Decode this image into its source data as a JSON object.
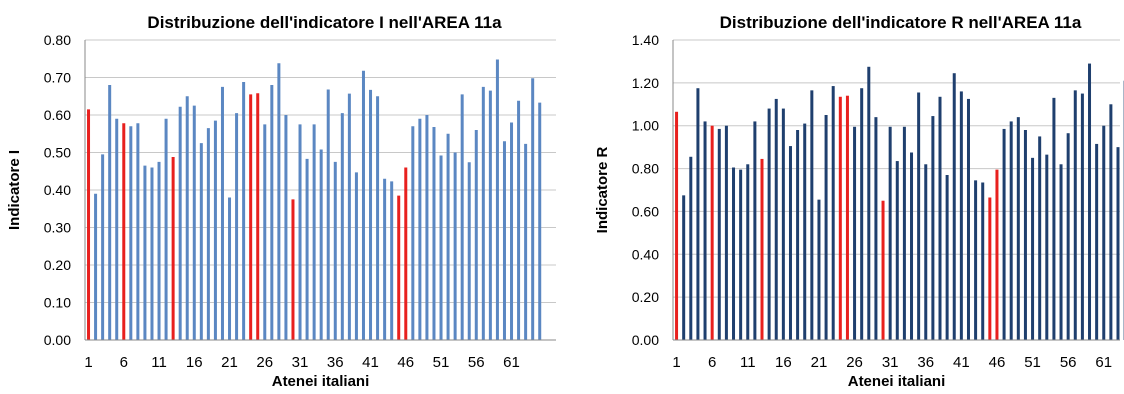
{
  "chart_data": [
    {
      "type": "bar",
      "title": "Distribuzione dell'indicatore I nell'AREA 11a",
      "xlabel": "Atenei italiani",
      "ylabel": "Indicatore I",
      "ylim": [
        0,
        0.8
      ],
      "yticks": [
        "0.00",
        "0.10",
        "0.20",
        "0.30",
        "0.40",
        "0.50",
        "0.60",
        "0.70",
        "0.80"
      ],
      "xticks": [
        "1",
        "6",
        "11",
        "16",
        "21",
        "26",
        "31",
        "36",
        "41",
        "46",
        "51",
        "56",
        "61"
      ],
      "grid": true,
      "colors": {
        "default": "#5b87c2",
        "highlight": "#e8201e"
      },
      "highlight_indices": [
        1,
        6,
        13,
        24,
        25,
        30,
        45,
        46
      ],
      "values": [
        0.615,
        0.39,
        0.495,
        0.68,
        0.59,
        0.578,
        0.57,
        0.578,
        0.465,
        0.46,
        0.475,
        0.59,
        0.488,
        0.622,
        0.65,
        0.625,
        0.525,
        0.565,
        0.585,
        0.675,
        0.38,
        0.605,
        0.688,
        0.655,
        0.658,
        0.575,
        0.68,
        0.738,
        0.6,
        0.375,
        0.575,
        0.483,
        0.575,
        0.508,
        0.668,
        0.475,
        0.605,
        0.657,
        0.447,
        0.718,
        0.667,
        0.65,
        0.43,
        0.423,
        0.385,
        0.46,
        0.57,
        0.59,
        0.6,
        0.568,
        0.492,
        0.55,
        0.5,
        0.655,
        0.474,
        0.56,
        0.675,
        0.665,
        0.748,
        0.53,
        0.58,
        0.638,
        0.523,
        0.698,
        0.633
      ]
    },
    {
      "type": "bar",
      "title": "Distribuzione dell'indicatore R nell'AREA 11a",
      "xlabel": "Atenei italiani",
      "ylabel": "Indicatore R",
      "ylim": [
        0,
        1.4
      ],
      "yticks": [
        "0.00",
        "0.20",
        "0.40",
        "0.60",
        "0.80",
        "1.00",
        "1.20",
        "1.40"
      ],
      "xticks": [
        "1",
        "6",
        "11",
        "16",
        "21",
        "26",
        "31",
        "36",
        "41",
        "46",
        "51",
        "56",
        "61"
      ],
      "grid": true,
      "colors": {
        "default": "#1f3f6e",
        "highlight": "#e8201e"
      },
      "highlight_indices": [
        1,
        6,
        13,
        24,
        25,
        30,
        45,
        46
      ],
      "values": [
        1.065,
        0.675,
        0.855,
        1.175,
        1.02,
        1.0,
        0.985,
        1.0,
        0.805,
        0.795,
        0.82,
        1.02,
        0.845,
        1.08,
        1.125,
        1.08,
        0.905,
        0.98,
        1.01,
        1.165,
        0.655,
        1.05,
        1.185,
        1.135,
        1.14,
        0.995,
        1.175,
        1.275,
        1.04,
        0.65,
        0.995,
        0.835,
        0.995,
        0.875,
        1.155,
        0.82,
        1.045,
        1.135,
        0.77,
        1.245,
        1.16,
        1.125,
        0.745,
        0.735,
        0.665,
        0.795,
        0.985,
        1.02,
        1.04,
        0.98,
        0.85,
        0.95,
        0.865,
        1.13,
        0.82,
        0.965,
        1.165,
        1.15,
        1.29,
        0.915,
        1.0,
        1.1,
        0.9,
        1.21
      ]
    }
  ]
}
